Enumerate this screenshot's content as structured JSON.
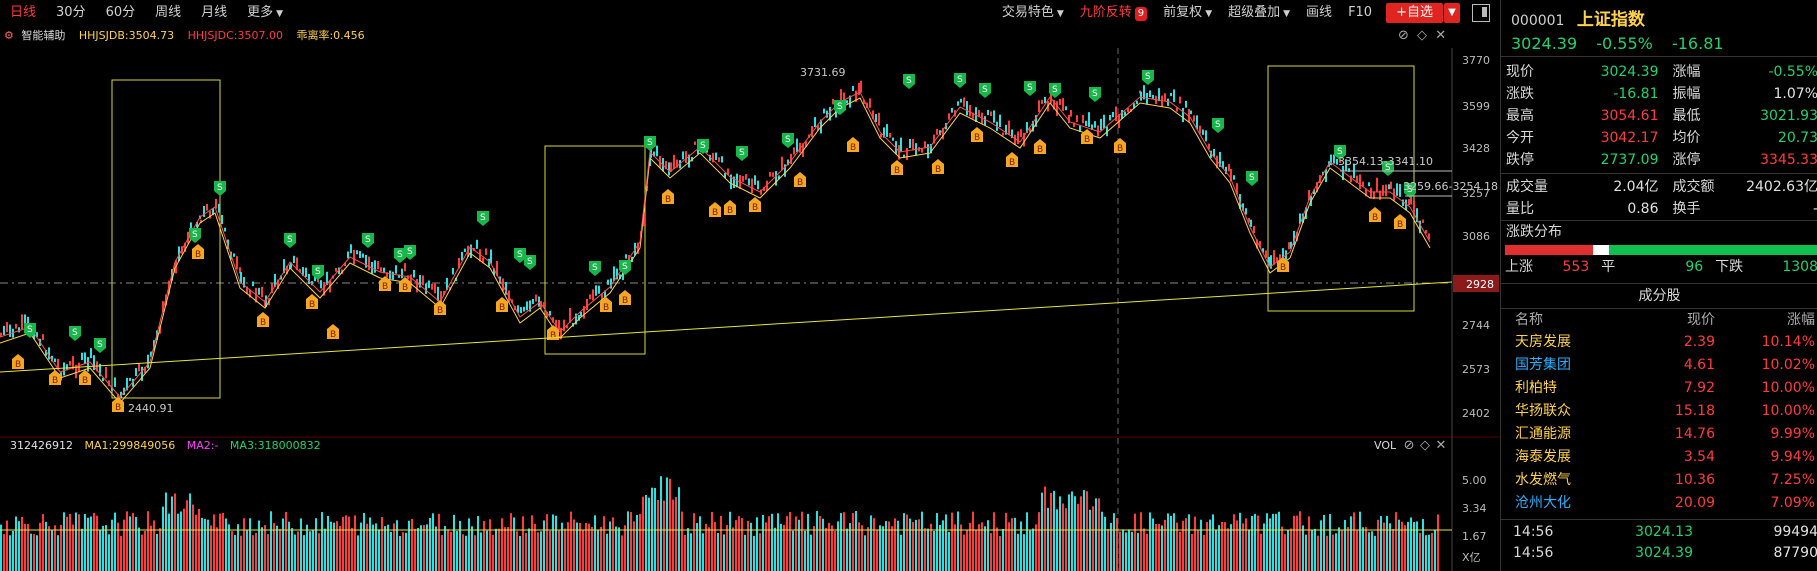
{
  "toolbar": {
    "tabs": [
      "日线",
      "30分",
      "60分",
      "周线",
      "月线",
      "更多"
    ],
    "right_items": [
      "交易特色",
      "九阶反转",
      "前复权",
      "超级叠加",
      "画线",
      "F10"
    ],
    "badge": "9",
    "add_label": "+自选"
  },
  "info": {
    "indicator": "智能辅助",
    "hhjsjdb": "HHJSJDB:3504.73",
    "hhjsjdc": "HHJSJDC:3507.00",
    "deviation": "乖离率:0.456"
  },
  "vol_info": {
    "volume": "312426912",
    "ma1": "MA1:299849056",
    "ma2": "MA2:-",
    "ma3": "MA3:318000832",
    "label": "VOL"
  },
  "price_axis": [
    "3770",
    "3599",
    "3428",
    "3257",
    "3086",
    "2915",
    "2744",
    "2573",
    "2402"
  ],
  "current_axis_tag": "2928",
  "vol_axis": [
    "5.00",
    "3.34",
    "1.67",
    "X亿"
  ],
  "annotations": {
    "high": "3731.69",
    "low": "2440.91",
    "right_top": "3354.13-3341.10",
    "right_mid": "3259.66-3254.18"
  },
  "panel": {
    "code": "000001",
    "name": "上证指数",
    "price": "3024.39",
    "change_pct": "-0.55%",
    "change": "-16.81",
    "rows": [
      {
        "l": "现价",
        "v": "3024.39",
        "vc": "green",
        "l2": "涨幅",
        "v2": "-0.55%",
        "v2c": "green"
      },
      {
        "l": "涨跌",
        "v": "-16.81",
        "vc": "green",
        "l2": "振幅",
        "v2": "1.07%",
        "v2c": "white"
      },
      {
        "l": "最高",
        "v": "3054.61",
        "vc": "red",
        "l2": "最低",
        "v2": "3021.93",
        "v2c": "green"
      },
      {
        "l": "今开",
        "v": "3042.17",
        "vc": "red",
        "l2": "均价",
        "v2": "20.73",
        "v2c": "green"
      },
      {
        "l": "跌停",
        "v": "2737.09",
        "vc": "green",
        "l2": "涨停",
        "v2": "3345.33",
        "v2c": "red"
      }
    ],
    "rows2": [
      {
        "l": "成交量",
        "v": "2.04亿",
        "l2": "成交额",
        "v2": "2402.63亿"
      },
      {
        "l": "量比",
        "v": "0.86",
        "l2": "换手",
        "v2": "-"
      }
    ],
    "dist_title": "涨跌分布",
    "dist": {
      "up_label": "上涨",
      "up": "553",
      "flat_label": "平",
      "flat": "96",
      "down_label": "下跌",
      "down": "1308"
    },
    "constituent_title": "成分股",
    "cons_head": [
      "名称",
      "现价",
      "涨幅"
    ],
    "constituents": [
      {
        "name": "天房发展",
        "price": "2.39",
        "pct": "10.14%",
        "blue": false
      },
      {
        "name": "国芳集团",
        "price": "4.61",
        "pct": "10.02%",
        "blue": true
      },
      {
        "name": "利柏特",
        "price": "7.92",
        "pct": "10.00%",
        "blue": false
      },
      {
        "name": "华扬联众",
        "price": "15.18",
        "pct": "10.00%",
        "blue": false
      },
      {
        "name": "汇通能源",
        "price": "14.76",
        "pct": "9.99%",
        "blue": false
      },
      {
        "name": "海泰发展",
        "price": "3.54",
        "pct": "9.94%",
        "blue": false
      },
      {
        "name": "水发燃气",
        "price": "10.36",
        "pct": "7.25%",
        "blue": false
      },
      {
        "name": "沧州大化",
        "price": "20.09",
        "pct": "7.09%",
        "blue": true
      }
    ],
    "ticks": [
      {
        "time": "14:56",
        "price": "3024.13",
        "vol": "99494"
      },
      {
        "time": "14:56",
        "price": "3024.39",
        "vol": "87790"
      }
    ]
  },
  "colors": {
    "up": "#ff3b3b",
    "down": "#1fd36a",
    "ma": "#ffd24a",
    "cyan": "#27e3e3"
  }
}
